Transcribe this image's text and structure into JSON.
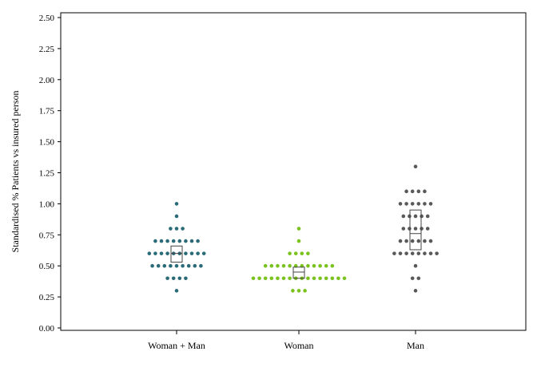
{
  "chart_data": {
    "type": "scatter",
    "subtype": "dot-plot with box (mean and confidence interval)",
    "title": "",
    "xlabel": "",
    "ylabel": "Standardised % Patients vs insured person",
    "ylim": [
      0.0,
      2.5
    ],
    "yticks": [
      "0.00",
      "0.25",
      "0.50",
      "0.75",
      "1.00",
      "1.25",
      "1.50",
      "1.75",
      "2.00",
      "2.25",
      "2.50"
    ],
    "categories": [
      "Woman + Man",
      "Woman",
      "Man"
    ],
    "grid": false,
    "legend": "none",
    "series": [
      {
        "category": "Woman + Man",
        "color": "#2b6b78",
        "points": [
          {
            "y": 1.0,
            "count": 1
          },
          {
            "y": 0.9,
            "count": 1
          },
          {
            "y": 0.8,
            "count": 3
          },
          {
            "y": 0.7,
            "count": 8
          },
          {
            "y": 0.6,
            "count": 10
          },
          {
            "y": 0.5,
            "count": 9
          },
          {
            "y": 0.4,
            "count": 4
          },
          {
            "y": 0.3,
            "count": 1
          }
        ],
        "box": {
          "low": 0.53,
          "mid": 0.6,
          "high": 0.66
        }
      },
      {
        "category": "Woman",
        "color": "#7ac21e",
        "points": [
          {
            "y": 0.8,
            "count": 1
          },
          {
            "y": 0.7,
            "count": 1
          },
          {
            "y": 0.6,
            "count": 4
          },
          {
            "y": 0.5,
            "count": 12
          },
          {
            "y": 0.4,
            "count": 16
          },
          {
            "y": 0.3,
            "count": 3
          }
        ],
        "box": {
          "low": 0.4,
          "mid": 0.45,
          "high": 0.49
        }
      },
      {
        "category": "Man",
        "color": "#595959",
        "points": [
          {
            "y": 1.3,
            "count": 1
          },
          {
            "y": 1.1,
            "count": 4
          },
          {
            "y": 1.0,
            "count": 6
          },
          {
            "y": 0.9,
            "count": 5
          },
          {
            "y": 0.8,
            "count": 5
          },
          {
            "y": 0.7,
            "count": 6
          },
          {
            "y": 0.6,
            "count": 8
          },
          {
            "y": 0.5,
            "count": 1
          },
          {
            "y": 0.4,
            "count": 2
          },
          {
            "y": 0.3,
            "count": 1
          }
        ],
        "box": {
          "low": 0.63,
          "mid": 0.76,
          "high": 0.95
        }
      }
    ]
  }
}
